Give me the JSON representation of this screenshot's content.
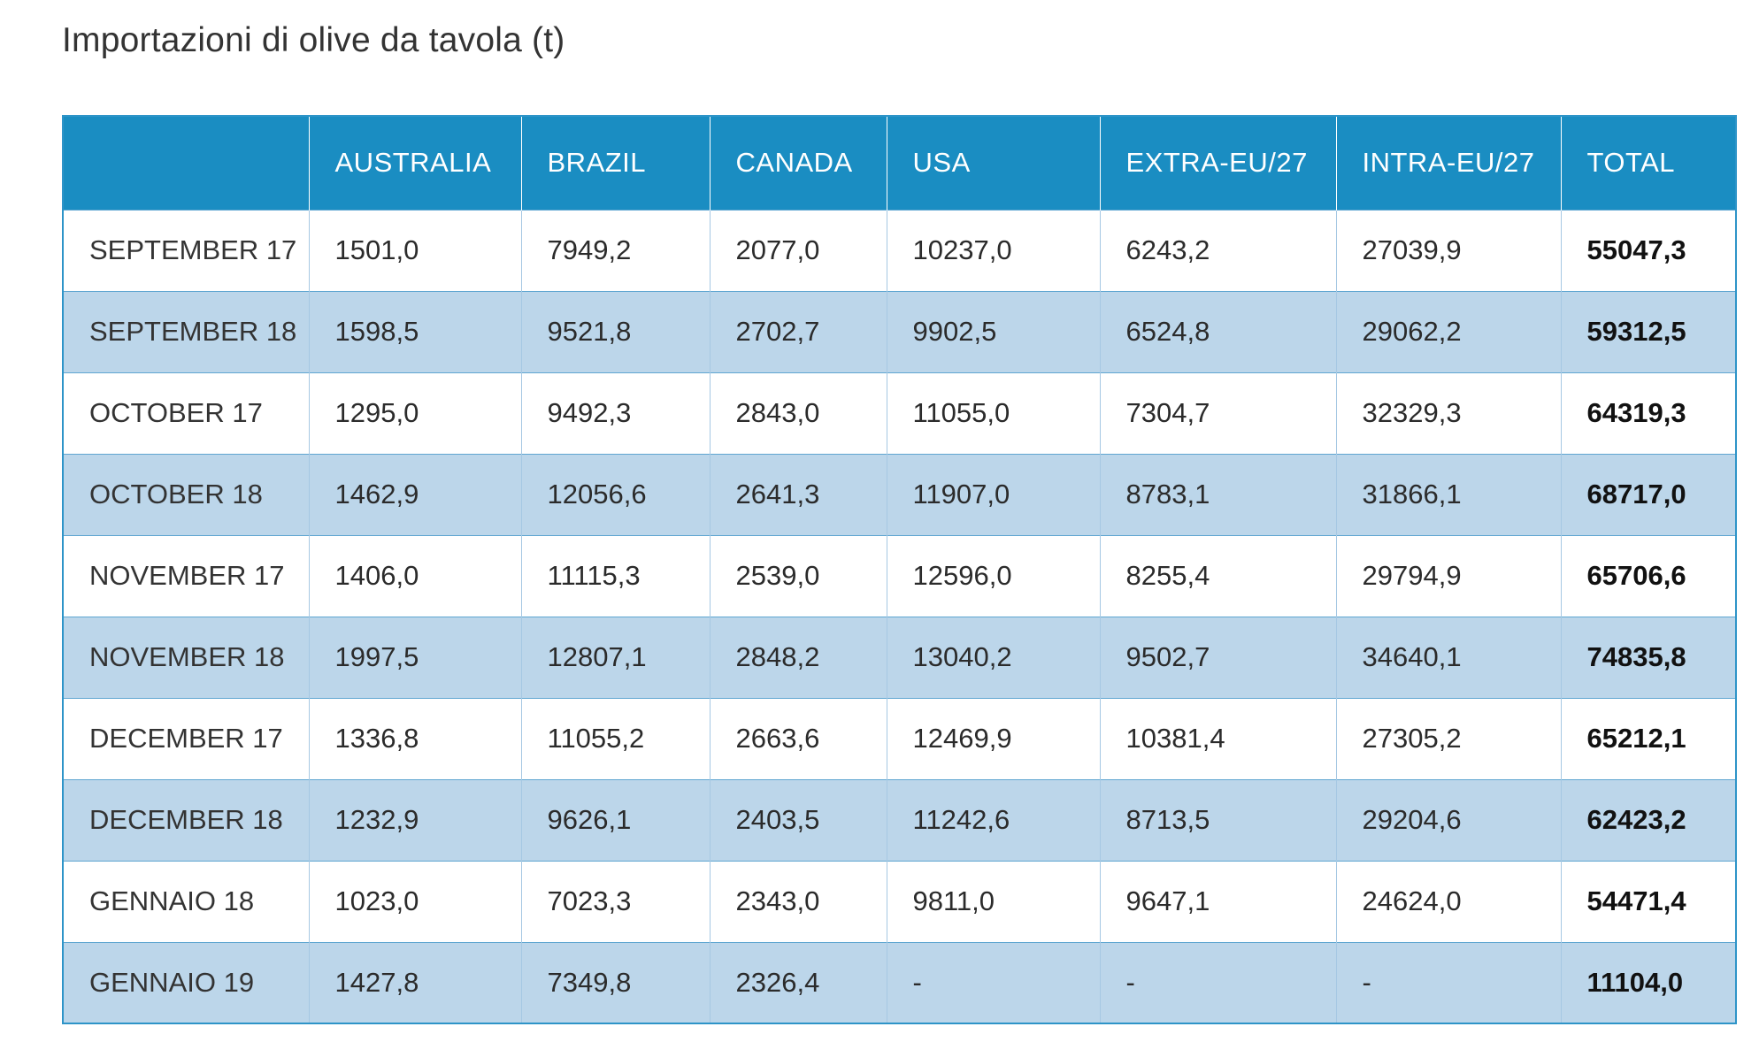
{
  "title": "Importazioni di olive da tavola (t)",
  "columns": [
    "",
    "AUSTRALIA",
    "BRAZIL",
    "CANADA",
    "USA",
    "EXTRA-EU/27",
    "INTRA-EU/27",
    "TOTAL"
  ],
  "rows": [
    {
      "label": "SEPTEMBER 17",
      "australia": "1501,0",
      "brazil": "7949,2",
      "canada": "2077,0",
      "usa": "10237,0",
      "extra_eu27": "6243,2",
      "intra_eu27": "27039,9",
      "total": "55047,3"
    },
    {
      "label": "SEPTEMBER 18",
      "australia": "1598,5",
      "brazil": "9521,8",
      "canada": "2702,7",
      "usa": "9902,5",
      "extra_eu27": "6524,8",
      "intra_eu27": "29062,2",
      "total": "59312,5"
    },
    {
      "label": "OCTOBER 17",
      "australia": "1295,0",
      "brazil": "9492,3",
      "canada": "2843,0",
      "usa": "11055,0",
      "extra_eu27": "7304,7",
      "intra_eu27": "32329,3",
      "total": "64319,3"
    },
    {
      "label": "OCTOBER 18",
      "australia": "1462,9",
      "brazil": "12056,6",
      "canada": "2641,3",
      "usa": "11907,0",
      "extra_eu27": "8783,1",
      "intra_eu27": "31866,1",
      "total": "68717,0"
    },
    {
      "label": "NOVEMBER 17",
      "australia": "1406,0",
      "brazil": "11115,3",
      "canada": "2539,0",
      "usa": "12596,0",
      "extra_eu27": "8255,4",
      "intra_eu27": "29794,9",
      "total": "65706,6"
    },
    {
      "label": "NOVEMBER 18",
      "australia": "1997,5",
      "brazil": "12807,1",
      "canada": "2848,2",
      "usa": "13040,2",
      "extra_eu27": "9502,7",
      "intra_eu27": "34640,1",
      "total": "74835,8"
    },
    {
      "label": "DECEMBER 17",
      "australia": "1336,8",
      "brazil": "11055,2",
      "canada": "2663,6",
      "usa": "12469,9",
      "extra_eu27": "10381,4",
      "intra_eu27": "27305,2",
      "total": "65212,1"
    },
    {
      "label": "DECEMBER 18",
      "australia": "1232,9",
      "brazil": "9626,1",
      "canada": "2403,5",
      "usa": "11242,6",
      "extra_eu27": "8713,5",
      "intra_eu27": "29204,6",
      "total": "62423,2"
    },
    {
      "label": "GENNAIO 18",
      "australia": "1023,0",
      "brazil": "7023,3",
      "canada": "2343,0",
      "usa": "9811,0",
      "extra_eu27": "9647,1",
      "intra_eu27": "24624,0",
      "total": "54471,4"
    },
    {
      "label": "GENNAIO 19",
      "australia": "1427,8",
      "brazil": "7349,8",
      "canada": "2326,4",
      "usa": "-",
      "extra_eu27": "-",
      "intra_eu27": "-",
      "total": "11104,0"
    }
  ],
  "colors": {
    "header_background": "#1a8dc2",
    "header_text": "#ffffff",
    "stripe_row": "#bcd6ea",
    "plain_row": "#ffffff",
    "border": "#2e94c8"
  }
}
